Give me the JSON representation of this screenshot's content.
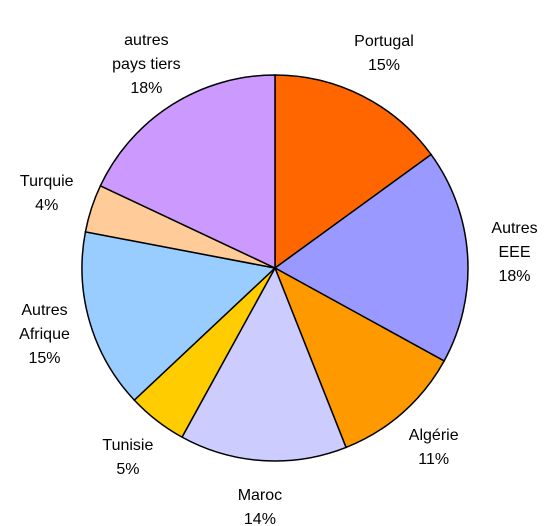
{
  "chart_data": {
    "type": "pie",
    "categories": [
      "Portugal",
      "Autres\nEEE",
      "Algérie",
      "Maroc",
      "Tunisie",
      "Autres\nAfrique",
      "Turquie",
      "autres\npays tiers"
    ],
    "values": [
      15,
      18,
      11,
      14,
      5,
      15,
      4,
      18
    ],
    "value_labels": [
      "15%",
      "18%",
      "11%",
      "14%",
      "5%",
      "15%",
      "4%",
      "18%"
    ],
    "colors": [
      "#ff6600",
      "#9999ff",
      "#ff9900",
      "#ccccff",
      "#ffcc00",
      "#99ccff",
      "#ffcc99",
      "#cc99ff"
    ]
  }
}
